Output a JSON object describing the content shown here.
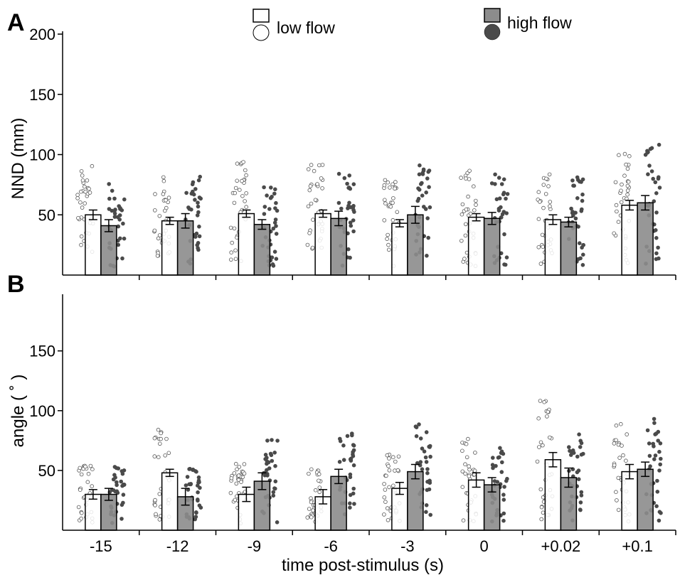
{
  "colors": {
    "low": "#ffffff",
    "high": "#8c8c8c",
    "high_dot": "#4a4a4a",
    "stroke": "#000000"
  },
  "legend": {
    "low_label": "low flow",
    "high_label": "high flow"
  },
  "xlabel": "time post-stimulus (s)",
  "chart_data": [
    {
      "type": "bar",
      "panel": "A",
      "ylabel": "NND (mm)",
      "ylim": [
        0,
        200
      ],
      "yticks": [
        "50",
        "100",
        "150",
        "200"
      ],
      "categories": [
        "-15",
        "-12",
        "-9",
        "-6",
        "-3",
        "0",
        "+0.02",
        "+0.1"
      ],
      "series": [
        {
          "name": "low flow",
          "values": [
            50,
            45,
            51,
            51,
            43,
            48,
            46,
            58
          ],
          "errors": [
            4,
            3,
            3,
            3,
            3,
            3,
            4,
            4
          ]
        },
        {
          "name": "high flow",
          "values": [
            41,
            45,
            42,
            47,
            50,
            47,
            44,
            60
          ],
          "errors": [
            5,
            6,
            4,
            6,
            7,
            5,
            4,
            6
          ]
        }
      ]
    },
    {
      "type": "bar",
      "panel": "B",
      "ylabel": "angle ( ˚ )",
      "ylim": [
        0,
        195
      ],
      "yticks": [
        "50",
        "100",
        "150"
      ],
      "categories": [
        "-15",
        "-12",
        "-9",
        "-6",
        "-3",
        "0",
        "+0.02",
        "+0.1"
      ],
      "series": [
        {
          "name": "low flow",
          "values": [
            30,
            48,
            30,
            28,
            35,
            42,
            59,
            49
          ],
          "errors": [
            4,
            3,
            6,
            6,
            5,
            6,
            6,
            6
          ]
        },
        {
          "name": "high flow",
          "values": [
            30,
            28,
            41,
            45,
            49,
            38,
            44,
            51
          ],
          "errors": [
            5,
            7,
            7,
            6,
            6,
            6,
            8,
            6
          ]
        }
      ]
    }
  ]
}
